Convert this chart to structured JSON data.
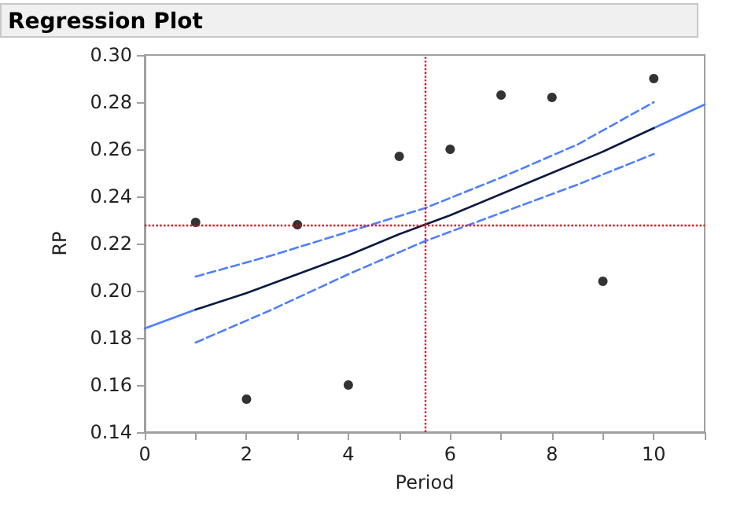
{
  "chart_data": {
    "type": "scatter",
    "title": "Regression Plot",
    "xlabel": "Period",
    "ylabel": "RP",
    "xlim": [
      0,
      11
    ],
    "ylim": [
      0.14,
      0.3
    ],
    "xticks": [
      0,
      {
        "value": 1,
        "label": null
      },
      2,
      {
        "value": 3,
        "label": null
      },
      4,
      {
        "value": 5,
        "label": null
      },
      6,
      {
        "value": 7,
        "label": null
      },
      8,
      {
        "value": 9,
        "label": null
      },
      10,
      {
        "value": 11,
        "label": null
      }
    ],
    "yticks": [
      {
        "value": 0.14,
        "label": "0.14"
      },
      {
        "value": 0.16,
        "label": "0.16"
      },
      {
        "value": 0.18,
        "label": "0.18"
      },
      {
        "value": 0.2,
        "label": "0.20"
      },
      {
        "value": 0.22,
        "label": "0.22"
      },
      {
        "value": 0.24,
        "label": "0.24"
      },
      {
        "value": 0.26,
        "label": "0.26"
      },
      {
        "value": 0.28,
        "label": "0.28"
      },
      {
        "value": 0.3,
        "label": "0.30"
      }
    ],
    "grid": false,
    "series": [
      {
        "type": "line",
        "color": "#4f7fff",
        "marker": "none",
        "line_style": "solid",
        "x": [
          0,
          1
        ],
        "values": [
          0.184,
          0.192
        ]
      },
      {
        "type": "line",
        "color": "#4f7fff",
        "marker": "none",
        "line_style": "solid",
        "x": [
          10,
          11
        ],
        "values": [
          0.269,
          0.279
        ]
      },
      {
        "type": "line",
        "color": "#0a1a40",
        "marker": "none",
        "line_style": "solid",
        "x": [
          1,
          2,
          3,
          4,
          5,
          6,
          7,
          8,
          9,
          10
        ],
        "values": [
          0.192,
          0.199,
          0.207,
          0.215,
          0.224,
          0.232,
          0.241,
          0.25,
          0.259,
          0.269
        ]
      },
      {
        "type": "line",
        "color": "#4f7fff",
        "marker": "none",
        "line_style": "dashed",
        "x": [
          1,
          2.5,
          4,
          5.5,
          7,
          8.5,
          10
        ],
        "values": [
          0.206,
          0.215,
          0.225,
          0.235,
          0.248,
          0.262,
          0.28
        ]
      },
      {
        "type": "line",
        "color": "#4f7fff",
        "marker": "none",
        "line_style": "dashed",
        "x": [
          1,
          2.5,
          4,
          5.5,
          7,
          8.5,
          10
        ],
        "values": [
          0.178,
          0.192,
          0.207,
          0.221,
          0.233,
          0.245,
          0.258
        ]
      },
      {
        "type": "scatter",
        "color": "#000000",
        "marker": "circle",
        "x": [
          1,
          2,
          3,
          4,
          5,
          6,
          7,
          8,
          9,
          10
        ],
        "values": [
          0.229,
          0.154,
          0.228,
          0.16,
          0.257,
          0.26,
          0.283,
          0.282,
          0.204,
          0.29
        ]
      }
    ],
    "ref_lines": [
      {
        "axis": "y",
        "value": 0.228,
        "color": "#e8001c",
        "line_style": "dotted"
      },
      {
        "axis": "x",
        "value": 5.5,
        "color": "#e8001c",
        "line_style": "dotted"
      }
    ]
  }
}
